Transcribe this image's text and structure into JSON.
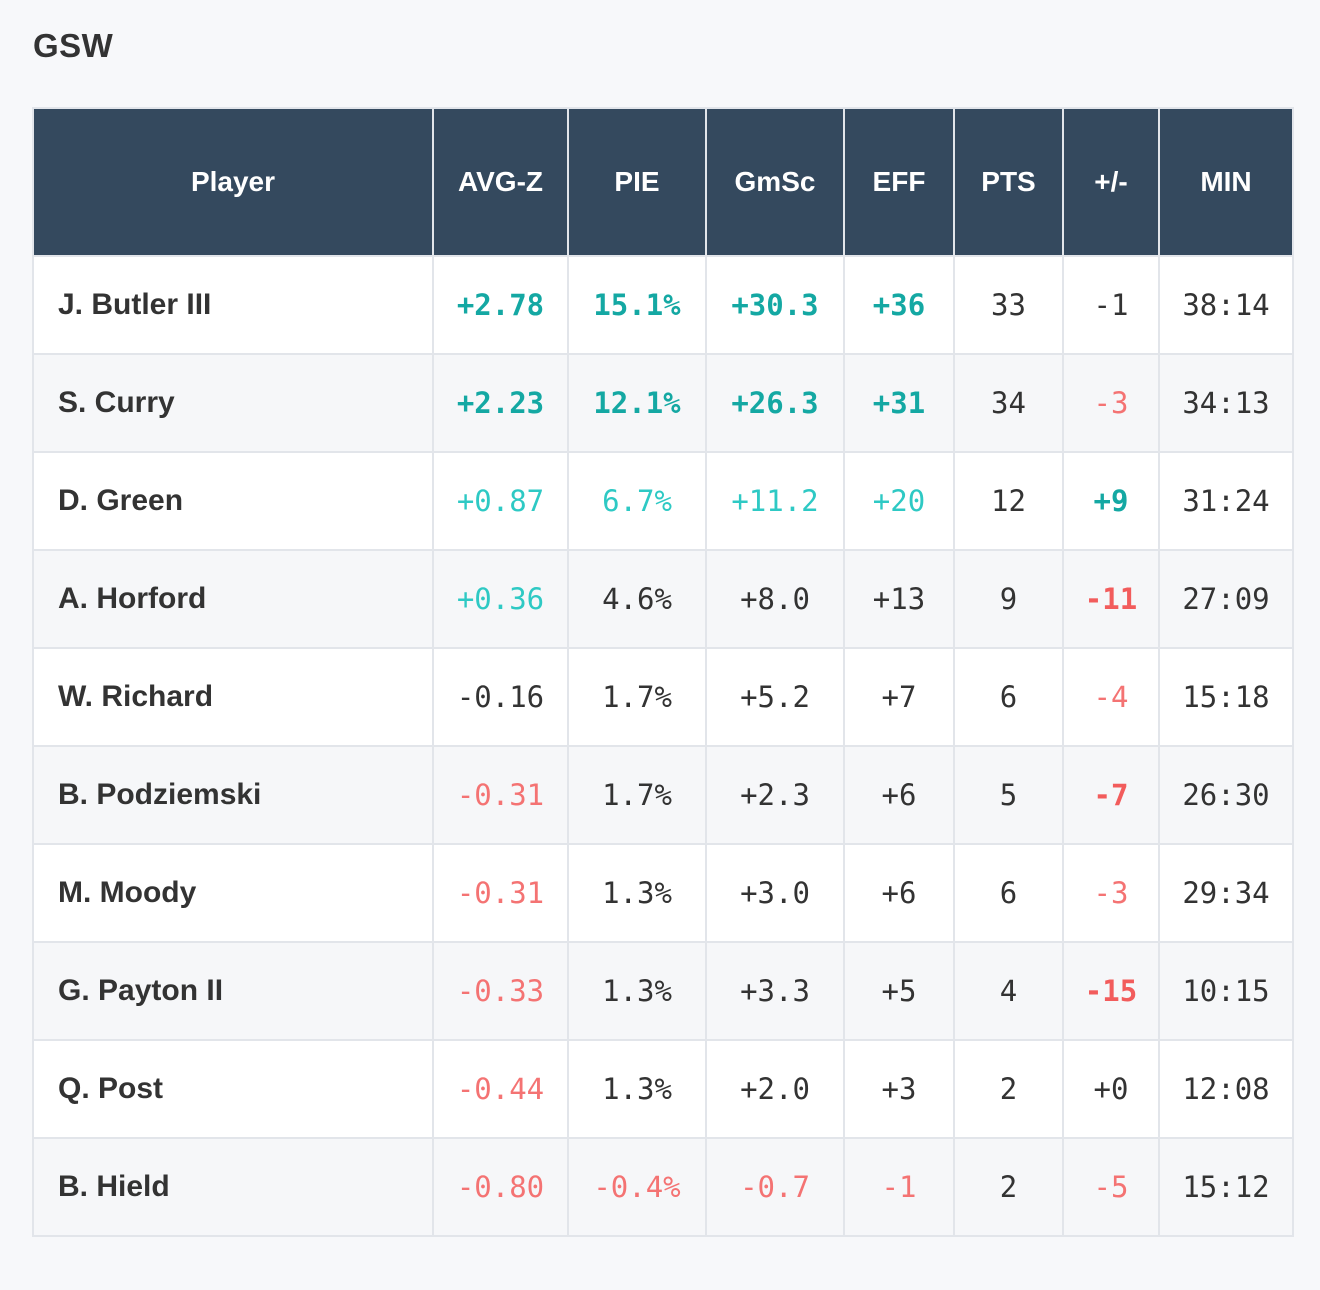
{
  "team": {
    "title": "GSW"
  },
  "table": {
    "headers": {
      "player": "Player",
      "avgz": "AVG-Z",
      "pie": "PIE",
      "gmsc": "GmSc",
      "eff": "EFF",
      "pts": "PTS",
      "pm": "+/-",
      "min": "MIN"
    },
    "rows": [
      {
        "player": "J. Butler III",
        "avgz": "+2.78",
        "pie": "15.1%",
        "gmsc": "+30.3",
        "eff": "+36",
        "pts": "33",
        "pm": "-1",
        "min": "38:14"
      },
      {
        "player": "S. Curry",
        "avgz": "+2.23",
        "pie": "12.1%",
        "gmsc": "+26.3",
        "eff": "+31",
        "pts": "34",
        "pm": "-3",
        "min": "34:13"
      },
      {
        "player": "D. Green",
        "avgz": "+0.87",
        "pie": "6.7%",
        "gmsc": "+11.2",
        "eff": "+20",
        "pts": "12",
        "pm": "+9",
        "min": "31:24"
      },
      {
        "player": "A. Horford",
        "avgz": "+0.36",
        "pie": "4.6%",
        "gmsc": "+8.0",
        "eff": "+13",
        "pts": "9",
        "pm": "-11",
        "min": "27:09"
      },
      {
        "player": "W. Richard",
        "avgz": "-0.16",
        "pie": "1.7%",
        "gmsc": "+5.2",
        "eff": "+7",
        "pts": "6",
        "pm": "-4",
        "min": "15:18"
      },
      {
        "player": "B. Podziemski",
        "avgz": "-0.31",
        "pie": "1.7%",
        "gmsc": "+2.3",
        "eff": "+6",
        "pts": "5",
        "pm": "-7",
        "min": "26:30"
      },
      {
        "player": "M. Moody",
        "avgz": "-0.31",
        "pie": "1.3%",
        "gmsc": "+3.0",
        "eff": "+6",
        "pts": "6",
        "pm": "-3",
        "min": "29:34"
      },
      {
        "player": "G. Payton II",
        "avgz": "-0.33",
        "pie": "1.3%",
        "gmsc": "+3.3",
        "eff": "+5",
        "pts": "4",
        "pm": "-15",
        "min": "10:15"
      },
      {
        "player": "Q. Post",
        "avgz": "-0.44",
        "pie": "1.3%",
        "gmsc": "+2.0",
        "eff": "+3",
        "pts": "2",
        "pm": "+0",
        "min": "12:08"
      },
      {
        "player": "B. Hield",
        "avgz": "-0.80",
        "pie": "-0.4%",
        "gmsc": "-0.7",
        "eff": "-1",
        "pts": "2",
        "pm": "-5",
        "min": "15:12"
      }
    ]
  },
  "colors": {
    "header_bg": "#34495e",
    "positive_strong": "#14a8a3",
    "positive_light": "#2ec9c4",
    "negative_strong": "#f25c5c",
    "negative_light": "#f47373",
    "neutral": "#333333"
  }
}
